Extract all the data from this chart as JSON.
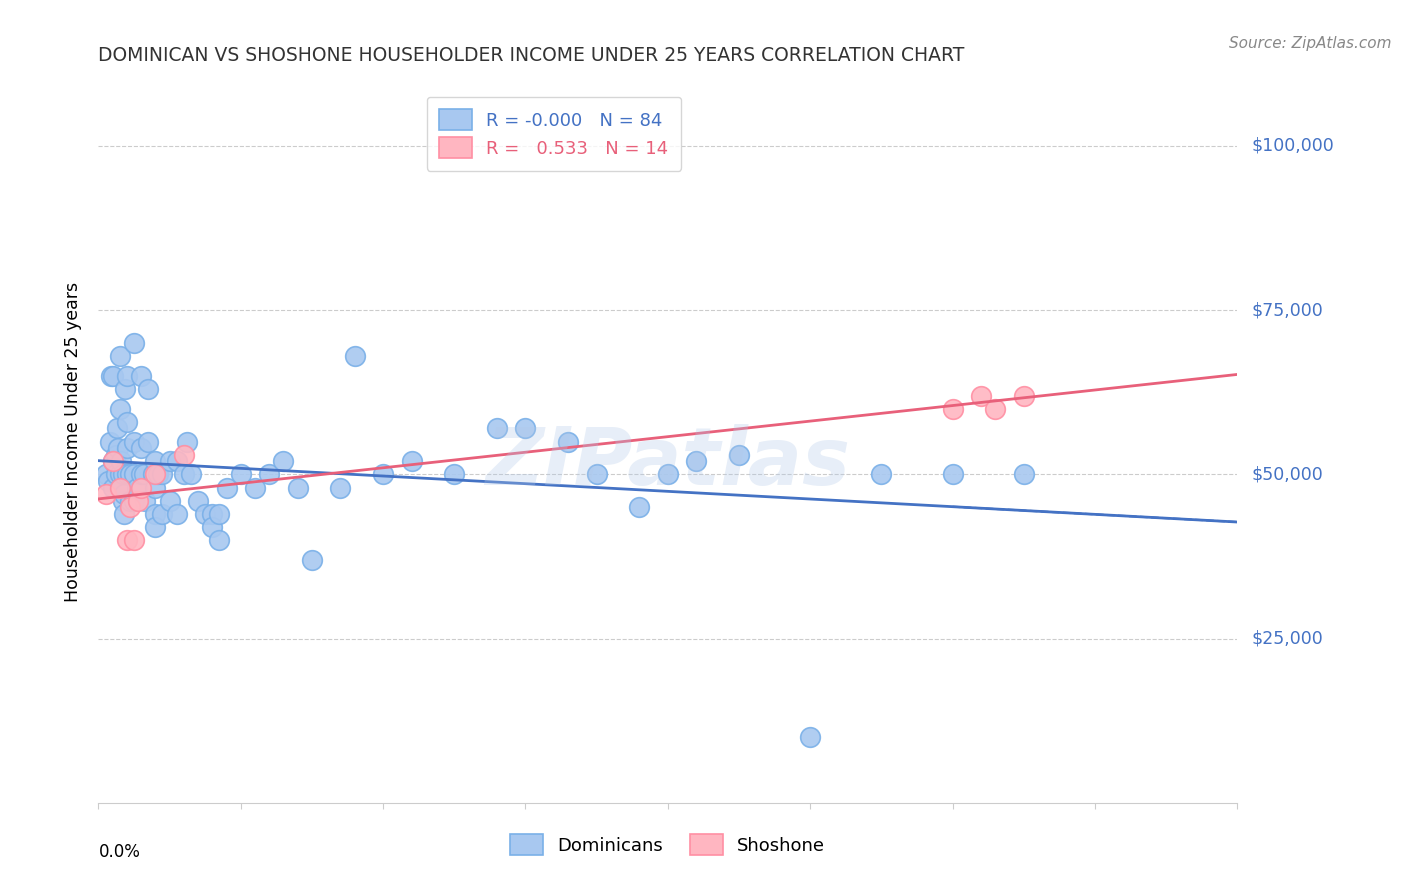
{
  "title": "DOMINICAN VS SHOSHONE HOUSEHOLDER INCOME UNDER 25 YEARS CORRELATION CHART",
  "source": "Source: ZipAtlas.com",
  "ylabel": "Householder Income Under 25 years",
  "ytick_labels": [
    "$25,000",
    "$50,000",
    "$75,000",
    "$100,000"
  ],
  "ytick_values": [
    25000,
    50000,
    75000,
    100000
  ],
  "ymin": 0,
  "ymax": 110000,
  "xmin": 0.0,
  "xmax": 0.8,
  "watermark": "ZIPatlas",
  "dom_R": -0.0,
  "dom_N": 84,
  "sho_R": 0.533,
  "sho_N": 14,
  "dom_x": [
    0.005,
    0.007,
    0.008,
    0.009,
    0.01,
    0.01,
    0.01,
    0.012,
    0.012,
    0.013,
    0.014,
    0.015,
    0.015,
    0.015,
    0.015,
    0.016,
    0.017,
    0.017,
    0.018,
    0.018,
    0.019,
    0.02,
    0.02,
    0.02,
    0.02,
    0.022,
    0.022,
    0.025,
    0.025,
    0.025,
    0.025,
    0.027,
    0.03,
    0.03,
    0.03,
    0.032,
    0.033,
    0.035,
    0.035,
    0.038,
    0.04,
    0.04,
    0.04,
    0.04,
    0.042,
    0.045,
    0.045,
    0.05,
    0.05,
    0.055,
    0.055,
    0.06,
    0.062,
    0.065,
    0.07,
    0.075,
    0.08,
    0.08,
    0.085,
    0.085,
    0.09,
    0.1,
    0.11,
    0.12,
    0.13,
    0.14,
    0.15,
    0.17,
    0.18,
    0.2,
    0.22,
    0.25,
    0.28,
    0.3,
    0.33,
    0.35,
    0.38,
    0.4,
    0.42,
    0.45,
    0.5,
    0.55,
    0.6,
    0.65
  ],
  "dom_y": [
    50000,
    49000,
    55000,
    65000,
    52000,
    48000,
    65000,
    50000,
    53000,
    57000,
    54000,
    68000,
    60000,
    50000,
    48000,
    52000,
    50000,
    46000,
    44000,
    47000,
    63000,
    65000,
    58000,
    50000,
    54000,
    50000,
    46000,
    55000,
    70000,
    50000,
    46000,
    48000,
    65000,
    50000,
    54000,
    50000,
    46000,
    63000,
    55000,
    50000,
    52000,
    48000,
    44000,
    42000,
    50000,
    50000,
    44000,
    52000,
    46000,
    52000,
    44000,
    50000,
    55000,
    50000,
    46000,
    44000,
    44000,
    42000,
    44000,
    40000,
    48000,
    50000,
    48000,
    50000,
    52000,
    48000,
    37000,
    48000,
    68000,
    50000,
    52000,
    50000,
    57000,
    57000,
    55000,
    50000,
    45000,
    50000,
    52000,
    53000,
    10000,
    50000,
    50000,
    50000
  ],
  "sho_x": [
    0.005,
    0.01,
    0.015,
    0.02,
    0.022,
    0.025,
    0.028,
    0.03,
    0.04,
    0.06,
    0.6,
    0.62,
    0.63,
    0.65
  ],
  "sho_y": [
    47000,
    52000,
    48000,
    40000,
    45000,
    40000,
    46000,
    48000,
    50000,
    53000,
    60000,
    62000,
    60000,
    62000
  ],
  "blue_face": "#a8c8f0",
  "blue_edge": "#7ab0e8",
  "pink_face": "#ffb6c1",
  "pink_edge": "#ff8fa3",
  "blue_line": "#4472c4",
  "pink_line": "#e8607a",
  "grid_color": "#cccccc",
  "title_color": "#333333",
  "source_color": "#888888",
  "axis_label_color": "#4472c4",
  "watermark_color": "#b0c8e8"
}
